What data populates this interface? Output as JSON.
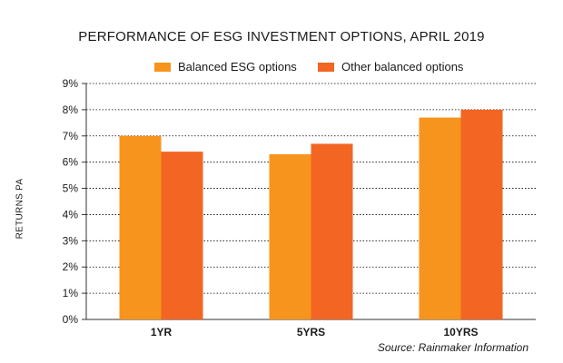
{
  "colors": {
    "series1": "#f7941d",
    "series2": "#f26522",
    "axis": "#333333",
    "grid": "#000000"
  },
  "chart_data": {
    "type": "bar",
    "title": "PERFORMANCE OF ESG INVESTMENT OPTIONS, APRIL 2019",
    "ylabel": "RETURNS PA",
    "xlabel": "",
    "categories": [
      "1YR",
      "5YRS",
      "10YRS"
    ],
    "series": [
      {
        "name": "Balanced ESG options",
        "values": [
          7.0,
          6.3,
          7.7
        ]
      },
      {
        "name": "Other balanced options",
        "values": [
          6.4,
          6.7,
          8.0
        ]
      }
    ],
    "ylim": [
      0,
      9
    ],
    "yticks": [
      "0%",
      "1%",
      "2%",
      "3%",
      "4%",
      "5%",
      "6%",
      "7%",
      "8%",
      "9%"
    ],
    "grid": true,
    "legend": "top-center",
    "source": "Source: Rainmaker Information"
  }
}
